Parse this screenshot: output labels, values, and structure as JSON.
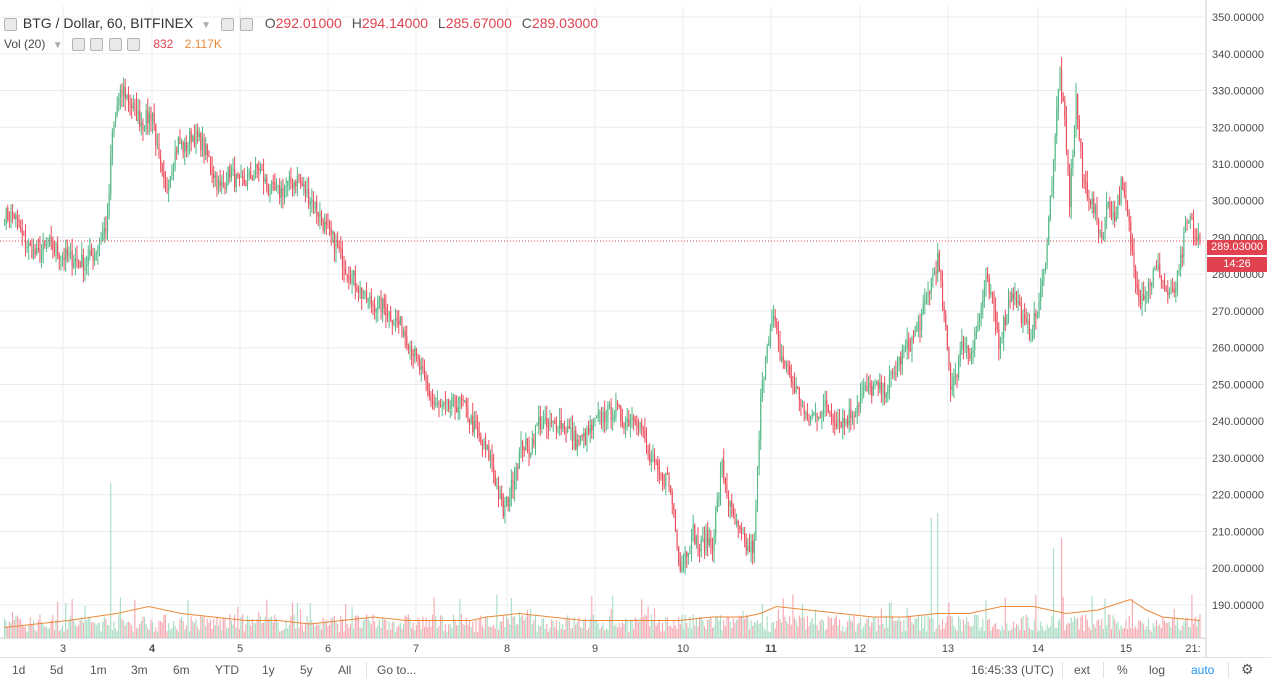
{
  "header": {
    "symbol": "BTG / Dollar, 60, BITFINEX",
    "ohlc": {
      "o_label": "O",
      "o": "292.01000",
      "h_label": "H",
      "h": "294.14000",
      "l_label": "L",
      "l": "285.67000",
      "c_label": "C",
      "c": "289.03000"
    },
    "vol_label": "Vol (20)",
    "vol_value": "832",
    "vol_ma_value": "2.117K"
  },
  "price_labels": {
    "last": "289.03000",
    "countdown": "14:26"
  },
  "bottom_bar": {
    "ranges": [
      "1d",
      "5d",
      "1m",
      "3m",
      "6m",
      "YTD",
      "1y",
      "5y",
      "All"
    ],
    "goto": "Go to...",
    "time": "16:45:33 (UTC)",
    "ext": "ext",
    "percent": "%",
    "log": "log",
    "auto": "auto"
  },
  "colors": {
    "up": "#53b987",
    "down": "#eb4d5c",
    "up_vol": "#a9dcc3",
    "down_vol": "#f6a9b0",
    "vol_ma": "#ec8a3a",
    "last_line": "#e0434f",
    "grid": "#e9edf2"
  },
  "chart_data": {
    "type": "candlestick",
    "timeframe": "60",
    "y_axis": {
      "ticks": [
        "190.00000",
        "200.00000",
        "210.00000",
        "220.00000",
        "230.00000",
        "240.00000",
        "250.00000",
        "260.00000",
        "270.00000",
        "280.00000",
        "290.00000",
        "300.00000",
        "310.00000",
        "320.00000",
        "330.00000",
        "340.00000",
        "350.00000"
      ],
      "range": [
        181,
        353
      ]
    },
    "x_axis": {
      "ticks": [
        "3",
        "4",
        "5",
        "6",
        "7",
        "8",
        "9",
        "10",
        "11",
        "12",
        "13",
        "14",
        "15",
        "21:"
      ]
    },
    "last_price": 289.03,
    "price_path": [
      [
        0,
        296
      ],
      [
        6,
        296
      ],
      [
        12,
        289
      ],
      [
        20,
        285
      ],
      [
        28,
        288
      ],
      [
        36,
        285
      ],
      [
        44,
        284
      ],
      [
        50,
        283
      ],
      [
        56,
        286
      ],
      [
        60,
        290
      ],
      [
        64,
        294
      ],
      [
        67,
        318
      ],
      [
        70,
        326
      ],
      [
        74,
        330
      ],
      [
        80,
        325
      ],
      [
        86,
        321
      ],
      [
        92,
        324
      ],
      [
        96,
        310
      ],
      [
        100,
        302
      ],
      [
        104,
        310
      ],
      [
        108,
        316
      ],
      [
        112,
        314
      ],
      [
        116,
        318
      ],
      [
        122,
        316
      ],
      [
        128,
        310
      ],
      [
        134,
        303
      ],
      [
        140,
        308
      ],
      [
        146,
        304
      ],
      [
        152,
        306
      ],
      [
        158,
        309
      ],
      [
        164,
        303
      ],
      [
        170,
        302
      ],
      [
        176,
        304
      ],
      [
        182,
        306
      ],
      [
        188,
        302
      ],
      [
        194,
        298
      ],
      [
        200,
        292
      ],
      [
        206,
        288
      ],
      [
        212,
        282
      ],
      [
        218,
        278
      ],
      [
        224,
        273
      ],
      [
        230,
        272
      ],
      [
        236,
        271
      ],
      [
        242,
        268
      ],
      [
        248,
        265
      ],
      [
        254,
        259
      ],
      [
        260,
        252
      ],
      [
        266,
        245
      ],
      [
        272,
        243
      ],
      [
        278,
        244
      ],
      [
        284,
        245
      ],
      [
        290,
        240
      ],
      [
        296,
        234
      ],
      [
        302,
        230
      ],
      [
        306,
        222
      ],
      [
        310,
        215
      ],
      [
        314,
        220
      ],
      [
        318,
        228
      ],
      [
        322,
        234
      ],
      [
        326,
        232
      ],
      [
        332,
        240
      ],
      [
        338,
        238
      ],
      [
        344,
        240
      ],
      [
        350,
        238
      ],
      [
        356,
        234
      ],
      [
        362,
        236
      ],
      [
        368,
        240
      ],
      [
        374,
        242
      ],
      [
        380,
        243
      ],
      [
        386,
        240
      ],
      [
        392,
        242
      ],
      [
        396,
        238
      ],
      [
        400,
        230
      ],
      [
        404,
        228
      ],
      [
        408,
        224
      ],
      [
        412,
        225
      ],
      [
        416,
        216
      ],
      [
        420,
        200
      ],
      [
        424,
        205
      ],
      [
        428,
        210
      ],
      [
        432,
        205
      ],
      [
        436,
        208
      ],
      [
        440,
        207
      ],
      [
        446,
        228
      ],
      [
        450,
        218
      ],
      [
        454,
        212
      ],
      [
        458,
        208
      ],
      [
        462,
        205
      ],
      [
        466,
        206
      ],
      [
        470,
        245
      ],
      [
        474,
        262
      ],
      [
        478,
        268
      ],
      [
        482,
        258
      ],
      [
        486,
        255
      ],
      [
        490,
        250
      ],
      [
        494,
        247
      ],
      [
        498,
        240
      ],
      [
        504,
        242
      ],
      [
        510,
        244
      ],
      [
        516,
        241
      ],
      [
        522,
        240
      ],
      [
        528,
        243
      ],
      [
        534,
        248
      ],
      [
        540,
        249
      ],
      [
        546,
        248
      ],
      [
        552,
        252
      ],
      [
        558,
        258
      ],
      [
        564,
        262
      ],
      [
        570,
        268
      ],
      [
        576,
        278
      ],
      [
        580,
        284
      ],
      [
        584,
        268
      ],
      [
        588,
        250
      ],
      [
        592,
        254
      ],
      [
        596,
        262
      ],
      [
        600,
        258
      ],
      [
        606,
        268
      ],
      [
        610,
        278
      ],
      [
        614,
        272
      ],
      [
        618,
        262
      ],
      [
        622,
        268
      ],
      [
        626,
        276
      ],
      [
        630,
        272
      ],
      [
        634,
        266
      ],
      [
        638,
        264
      ],
      [
        642,
        270
      ],
      [
        646,
        280
      ],
      [
        650,
        300
      ],
      [
        653,
        318
      ],
      [
        656,
        335
      ],
      [
        659,
        320
      ],
      [
        662,
        300
      ],
      [
        666,
        328
      ],
      [
        670,
        306
      ],
      [
        674,
        302
      ],
      [
        678,
        296
      ],
      [
        682,
        290
      ],
      [
        686,
        300
      ],
      [
        690,
        295
      ],
      [
        694,
        304
      ],
      [
        698,
        296
      ],
      [
        702,
        282
      ],
      [
        706,
        274
      ],
      [
        710,
        276
      ],
      [
        714,
        280
      ],
      [
        718,
        281
      ],
      [
        722,
        275
      ],
      [
        726,
        274
      ],
      [
        730,
        280
      ],
      [
        734,
        292
      ],
      [
        737,
        295
      ],
      [
        740,
        290
      ],
      [
        743,
        289.03
      ]
    ],
    "volume_ma": [
      [
        0,
        184
      ],
      [
        40,
        186
      ],
      [
        70,
        188
      ],
      [
        90,
        190
      ],
      [
        110,
        188
      ],
      [
        130,
        187
      ],
      [
        150,
        186
      ],
      [
        170,
        186
      ],
      [
        190,
        185
      ],
      [
        210,
        186
      ],
      [
        230,
        187
      ],
      [
        250,
        186
      ],
      [
        270,
        186
      ],
      [
        290,
        186
      ],
      [
        300,
        187
      ],
      [
        320,
        188
      ],
      [
        340,
        187
      ],
      [
        360,
        186
      ],
      [
        380,
        186
      ],
      [
        400,
        186
      ],
      [
        420,
        186
      ],
      [
        440,
        187
      ],
      [
        460,
        187
      ],
      [
        470,
        188
      ],
      [
        480,
        190
      ],
      [
        500,
        189
      ],
      [
        520,
        188
      ],
      [
        540,
        187
      ],
      [
        560,
        187
      ],
      [
        580,
        188
      ],
      [
        600,
        188
      ],
      [
        620,
        190
      ],
      [
        640,
        190
      ],
      [
        660,
        188
      ],
      [
        680,
        189
      ],
      [
        700,
        192
      ],
      [
        710,
        189
      ],
      [
        720,
        187
      ],
      [
        743,
        186
      ]
    ]
  }
}
